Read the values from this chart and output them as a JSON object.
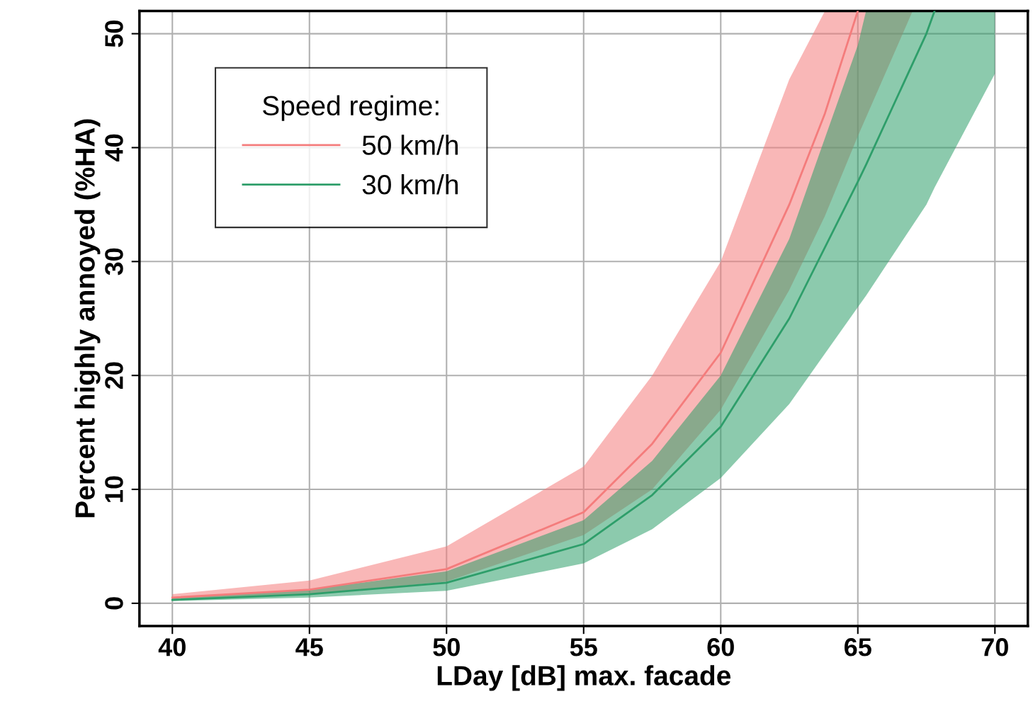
{
  "chart_data": {
    "type": "line",
    "xlabel": "LDay [dB] max. facade",
    "ylabel": "Percent highly annoyed (%HA)",
    "legend_title": "Speed regime:",
    "xlim": [
      38.8,
      71.2
    ],
    "ylim": [
      -2,
      52
    ],
    "xticks": [
      40,
      45,
      50,
      55,
      60,
      65,
      70
    ],
    "yticks": [
      0,
      10,
      20,
      30,
      40,
      50
    ],
    "grid": true,
    "legend": "top left",
    "line_style": "solid",
    "marker": "none",
    "series": [
      {
        "name": "50 km/h",
        "color": "#f47c7c",
        "x": [
          40,
          45,
          50,
          55,
          57.5,
          60,
          62.5,
          63.8,
          65,
          67
        ],
        "values": [
          0.5,
          1.2,
          3.0,
          8.0,
          14,
          22,
          35,
          43,
          52,
          null
        ],
        "upper": [
          0.8,
          2.0,
          5.0,
          12,
          20,
          30,
          46,
          52,
          52,
          52
        ],
        "lower": [
          0.3,
          0.8,
          1.9,
          6.0,
          10,
          17,
          27.5,
          34,
          41,
          52
        ]
      },
      {
        "name": "30 km/h",
        "color": "#2e9e6a",
        "x": [
          40,
          45,
          50,
          55,
          57.5,
          60,
          62.5,
          65,
          65.3,
          67.5,
          67.8,
          70
        ],
        "values": [
          0.3,
          0.8,
          1.8,
          5.2,
          9.5,
          15.5,
          25,
          37,
          38.5,
          50,
          52,
          null
        ],
        "upper": [
          0.5,
          1.2,
          2.8,
          7.3,
          12.5,
          20,
          32,
          49,
          52,
          52,
          52,
          52
        ],
        "lower": [
          0.2,
          0.5,
          1.1,
          3.5,
          6.5,
          11,
          17.5,
          26,
          27,
          35,
          36.5,
          46.5
        ]
      }
    ]
  }
}
